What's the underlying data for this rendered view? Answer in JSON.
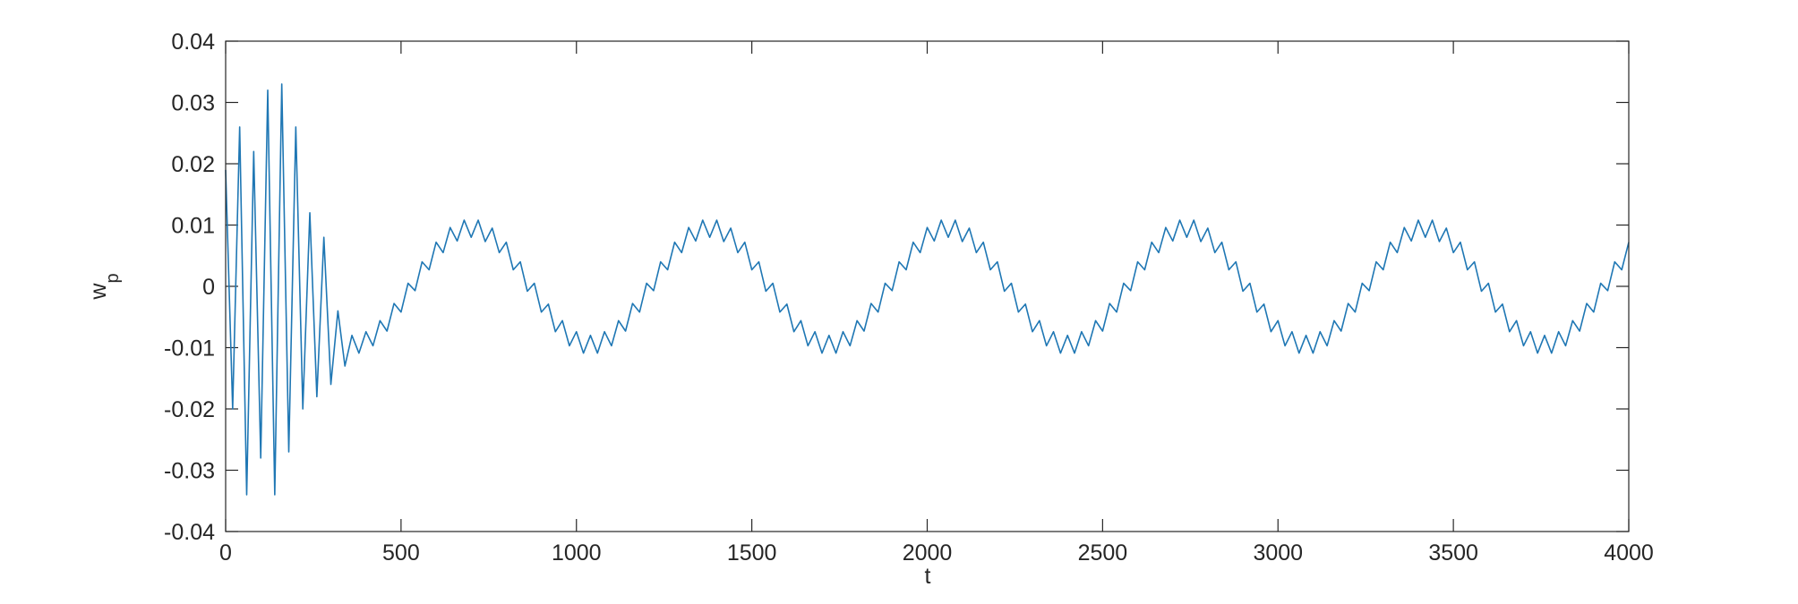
{
  "chart_data": {
    "type": "line",
    "xlabel": "t",
    "ylabel": "w",
    "ylabel_subscript": "p",
    "color": "#1f77b4",
    "xlim": [
      0,
      4000
    ],
    "ylim": [
      -0.04,
      0.04
    ],
    "xticks": [
      0,
      500,
      1000,
      1500,
      2000,
      2500,
      3000,
      3500,
      4000
    ],
    "yticks": [
      -0.04,
      -0.03,
      -0.02,
      -0.01,
      0,
      0.01,
      0.02,
      0.03,
      0.04
    ],
    "grid": false,
    "box": true,
    "x": [
      0,
      20,
      40,
      60,
      80,
      100,
      120,
      140,
      160,
      180,
      200,
      220,
      240,
      260,
      280,
      300,
      320,
      340,
      360,
      380,
      400,
      420,
      440,
      460,
      480,
      500,
      520,
      540,
      560,
      580,
      600,
      620,
      640,
      660,
      680,
      700,
      720,
      740,
      760,
      780,
      800,
      820,
      840,
      860,
      880,
      900,
      920,
      940,
      960,
      980,
      1000,
      1020,
      1040,
      1060,
      1080,
      1100,
      1120,
      1140,
      1160,
      1180,
      1200,
      1220,
      1240,
      1260,
      1280,
      1300,
      1320,
      1340,
      1360,
      1380,
      1400,
      1420,
      1440,
      1460,
      1480,
      1500,
      1520,
      1540,
      1560,
      1580,
      1600,
      1620,
      1640,
      1660,
      1680,
      1700,
      1720,
      1740,
      1760,
      1780,
      1800,
      1820,
      1840,
      1860,
      1880,
      1900,
      1920,
      1940,
      1960,
      1980,
      2000,
      2020,
      2040,
      2060,
      2080,
      2100,
      2120,
      2140,
      2160,
      2180,
      2200,
      2220,
      2240,
      2260,
      2280,
      2300,
      2320,
      2340,
      2360,
      2380,
      2400,
      2420,
      2440,
      2460,
      2480,
      2500,
      2520,
      2540,
      2560,
      2580,
      2600,
      2620,
      2640,
      2660,
      2680,
      2700,
      2720,
      2740,
      2760,
      2780,
      2800,
      2820,
      2840,
      2860,
      2880,
      2900,
      2920,
      2940,
      2960,
      2980,
      3000,
      3020,
      3040,
      3060,
      3080,
      3100,
      3120,
      3140,
      3160,
      3180,
      3200,
      3220,
      3240,
      3260,
      3280,
      3300,
      3320,
      3340,
      3360,
      3380,
      3400,
      3420,
      3440,
      3460,
      3480,
      3500,
      3520,
      3540,
      3560,
      3580,
      3600,
      3620,
      3640,
      3660,
      3680,
      3700,
      3720,
      3740,
      3760,
      3780,
      3800,
      3820,
      3840,
      3860,
      3880,
      3900,
      3920,
      3940,
      3960,
      3980,
      4000
    ],
    "values": [
      0.019,
      -0.02,
      0.026,
      -0.034,
      0.022,
      -0.028,
      0.032,
      -0.034,
      0.033,
      -0.027,
      0.026,
      -0.02,
      0.012,
      -0.018,
      0.008,
      -0.016,
      -0.004,
      -0.013,
      -0.008,
      -0.0109,
      -0.0074,
      -0.0097,
      -0.0056,
      -0.0073,
      -0.0028,
      -0.0042,
      0.0005,
      -0.0007,
      0.004,
      0.0027,
      0.0072,
      0.0055,
      0.0096,
      0.0074,
      0.0108,
      0.008,
      0.0108,
      0.0073,
      0.0095,
      0.0055,
      0.0072,
      0.0027,
      0.004,
      -0.0008,
      0.0005,
      -0.0042,
      -0.0029,
      -0.0074,
      -0.0056,
      -0.0097,
      -0.0074,
      -0.0109,
      -0.008,
      -0.0109,
      -0.0074,
      -0.0097,
      -0.0056,
      -0.0073,
      -0.0028,
      -0.0042,
      0.0005,
      -0.0007,
      0.004,
      0.0027,
      0.0072,
      0.0055,
      0.0096,
      0.0074,
      0.0108,
      0.008,
      0.0108,
      0.0073,
      0.0095,
      0.0055,
      0.0072,
      0.0027,
      0.004,
      -0.0008,
      0.0005,
      -0.0042,
      -0.0029,
      -0.0074,
      -0.0056,
      -0.0097,
      -0.0074,
      -0.0109,
      -0.008,
      -0.0109,
      -0.0074,
      -0.0097,
      -0.0056,
      -0.0073,
      -0.0028,
      -0.0042,
      0.0005,
      -0.0007,
      0.004,
      0.0027,
      0.0072,
      0.0055,
      0.0096,
      0.0074,
      0.0108,
      0.008,
      0.0108,
      0.0073,
      0.0095,
      0.0055,
      0.0072,
      0.0027,
      0.004,
      -0.0008,
      0.0005,
      -0.0042,
      -0.0029,
      -0.0074,
      -0.0056,
      -0.0097,
      -0.0074,
      -0.0109,
      -0.008,
      -0.0109,
      -0.0074,
      -0.0097,
      -0.0056,
      -0.0073,
      -0.0028,
      -0.0042,
      0.0005,
      -0.0007,
      0.004,
      0.0027,
      0.0072,
      0.0055,
      0.0096,
      0.0074,
      0.0108,
      0.008,
      0.0108,
      0.0073,
      0.0095,
      0.0055,
      0.0072,
      0.0027,
      0.004,
      -0.0008,
      0.0005,
      -0.0042,
      -0.0029,
      -0.0074,
      -0.0056,
      -0.0097,
      -0.0074,
      -0.0109,
      -0.008,
      -0.0109,
      -0.0074,
      -0.0097,
      -0.0056,
      -0.0073,
      -0.0028,
      -0.0042,
      0.0005,
      -0.0007,
      0.004,
      0.0027,
      0.0072,
      0.0055,
      0.0096,
      0.0074,
      0.0108,
      0.008,
      0.0108,
      0.0073,
      0.0095,
      0.0055,
      0.0072,
      0.0027,
      0.004,
      -0.0008,
      0.0005,
      -0.0042,
      -0.0029,
      -0.0074,
      -0.0056,
      -0.0097,
      -0.0074,
      -0.0109,
      -0.008,
      -0.0109,
      -0.0074,
      -0.0097,
      -0.0056,
      -0.0073,
      -0.0028,
      -0.0042,
      0.0005,
      -0.0007,
      0.004,
      0.0027,
      0.0072
    ]
  }
}
